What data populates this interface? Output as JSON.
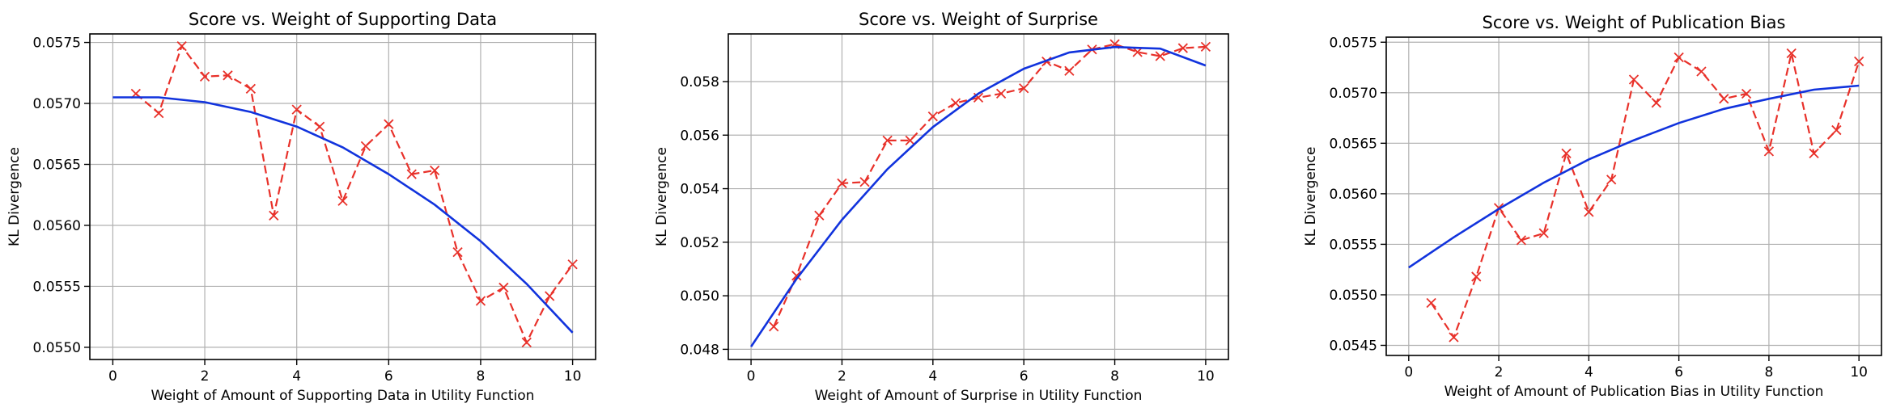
{
  "chart_data": [
    {
      "type": "line",
      "title": "Score vs. Weight of Supporting Data",
      "xlabel": "Weight of Amount of Supporting Data in Utility Function",
      "ylabel": "KL Divergence",
      "xlim": [
        -0.5,
        10.5
      ],
      "ylim": [
        0.0549,
        0.05757
      ],
      "xticks": [
        0,
        2,
        4,
        6,
        8,
        10
      ],
      "yticks": [
        0.055,
        0.0555,
        0.056,
        0.0565,
        0.057,
        0.0575
      ],
      "ytick_labels": [
        "0.0550",
        "0.0555",
        "0.0560",
        "0.0565",
        "0.0570",
        "0.0575"
      ],
      "grid": true,
      "series": [
        {
          "style": "dashed-x",
          "color": "#e8312a",
          "x": [
            0.5,
            1.0,
            1.5,
            2.0,
            2.5,
            3.0,
            3.5,
            4.0,
            4.5,
            5.0,
            5.5,
            6.0,
            6.5,
            7.0,
            7.5,
            8.0,
            8.5,
            9.0,
            9.5,
            10.0
          ],
          "y": [
            0.05708,
            0.05692,
            0.05747,
            0.05722,
            0.05723,
            0.05712,
            0.05608,
            0.05695,
            0.05681,
            0.0562,
            0.05665,
            0.05683,
            0.05642,
            0.05645,
            0.05578,
            0.05538,
            0.05549,
            0.05504,
            0.05542,
            0.05568
          ]
        },
        {
          "style": "solid",
          "color": "#1133dd",
          "x": [
            0,
            1,
            2,
            3,
            4,
            5,
            6,
            7,
            8,
            9,
            10
          ],
          "y": [
            0.05705,
            0.05705,
            0.05701,
            0.05693,
            0.05681,
            0.05664,
            0.05642,
            0.05617,
            0.05587,
            0.05552,
            0.05512
          ]
        }
      ]
    },
    {
      "type": "line",
      "title": "Score vs. Weight of Surprise",
      "xlabel": "Weight of Amount of Surprise in Utility Function",
      "ylabel": "KL Divergence",
      "xlim": [
        -0.5,
        10.5
      ],
      "ylim": [
        0.04762,
        0.05978
      ],
      "xticks": [
        0,
        2,
        4,
        6,
        8,
        10
      ],
      "yticks": [
        0.048,
        0.05,
        0.052,
        0.054,
        0.056,
        0.058
      ],
      "ytick_labels": [
        "0.048",
        "0.050",
        "0.052",
        "0.054",
        "0.056",
        "0.058"
      ],
      "grid": true,
      "series": [
        {
          "style": "dashed-x",
          "color": "#e8312a",
          "x": [
            0.5,
            1.0,
            1.5,
            2.0,
            2.5,
            3.0,
            3.5,
            4.0,
            4.5,
            5.0,
            5.5,
            6.0,
            6.5,
            7.0,
            7.5,
            8.0,
            8.5,
            9.0,
            9.5,
            10.0
          ],
          "y": [
            0.04885,
            0.05075,
            0.053,
            0.0542,
            0.05425,
            0.0558,
            0.0558,
            0.0567,
            0.0572,
            0.0574,
            0.05755,
            0.05775,
            0.05875,
            0.0584,
            0.0592,
            0.0594,
            0.0591,
            0.05895,
            0.05925,
            0.0593
          ]
        },
        {
          "style": "solid",
          "color": "#1133dd",
          "x": [
            0,
            1,
            2,
            3,
            4,
            5,
            6,
            7,
            8,
            9,
            10
          ],
          "y": [
            0.0481,
            0.05063,
            0.05284,
            0.05473,
            0.0563,
            0.05755,
            0.05848,
            0.05909,
            0.05929,
            0.05923,
            0.0586
          ]
        }
      ]
    },
    {
      "type": "line",
      "title": "Score vs. Weight of Publication Bias",
      "xlabel": "Weight of Amount of Publication Bias in Utility Function",
      "ylabel": "KL Divergence",
      "xlim": [
        -0.5,
        10.5
      ],
      "ylim": [
        0.0544,
        0.05755
      ],
      "xticks": [
        0,
        2,
        4,
        6,
        8,
        10
      ],
      "yticks": [
        0.0545,
        0.055,
        0.0555,
        0.056,
        0.0565,
        0.057,
        0.0575
      ],
      "ytick_labels": [
        "0.0545",
        "0.0550",
        "0.0555",
        "0.0560",
        "0.0565",
        "0.0570",
        "0.0575"
      ],
      "grid": true,
      "series": [
        {
          "style": "dashed-x",
          "color": "#e8312a",
          "x": [
            0.5,
            1.0,
            1.5,
            2.0,
            2.5,
            3.0,
            3.5,
            4.0,
            4.5,
            5.0,
            5.5,
            6.0,
            6.5,
            7.0,
            7.5,
            8.0,
            8.5,
            9.0,
            9.5,
            10.0
          ],
          "y": [
            0.05492,
            0.05458,
            0.05518,
            0.05586,
            0.05554,
            0.05561,
            0.0564,
            0.05582,
            0.05614,
            0.05713,
            0.0569,
            0.05735,
            0.05721,
            0.05694,
            0.05699,
            0.05642,
            0.05739,
            0.0564,
            0.05663,
            0.05731
          ]
        },
        {
          "style": "solid",
          "color": "#1133dd",
          "x": [
            0,
            1,
            2,
            3,
            4,
            5,
            6,
            7,
            8,
            9,
            10
          ],
          "y": [
            0.05527,
            0.05557,
            0.05585,
            0.05611,
            0.05634,
            0.05653,
            0.0567,
            0.05684,
            0.05694,
            0.05703,
            0.05707
          ]
        }
      ]
    }
  ]
}
